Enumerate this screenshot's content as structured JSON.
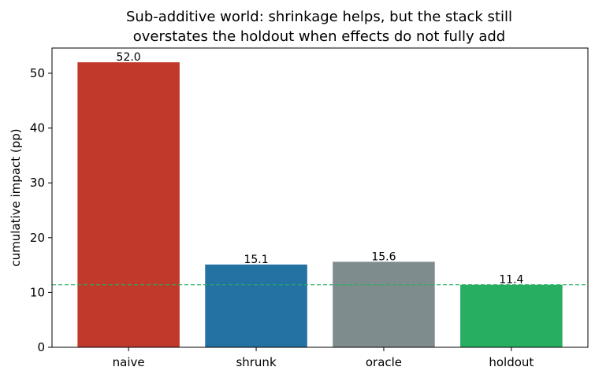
{
  "chart_data": {
    "type": "bar",
    "title_lines": [
      "Sub-additive world: shrinkage helps, but the stack still",
      "overstates the holdout when effects do not fully add"
    ],
    "xlabel": "",
    "ylabel": "cumulative impact (pp)",
    "categories": [
      "naive",
      "shrunk",
      "oracle",
      "holdout"
    ],
    "values": [
      52.0,
      15.1,
      15.6,
      11.4
    ],
    "value_labels": [
      "52.0",
      "15.1",
      "15.6",
      "11.4"
    ],
    "colors": [
      "#c0392b",
      "#2471a3",
      "#7f8c8d",
      "#27ae60"
    ],
    "ylim": [
      0,
      54.6
    ],
    "yticks": [
      0,
      10,
      20,
      30,
      40,
      50
    ],
    "reference_line": {
      "value": 11.4,
      "style": "dashed",
      "color": "#27ae60"
    },
    "grid": false,
    "legend": "none"
  }
}
